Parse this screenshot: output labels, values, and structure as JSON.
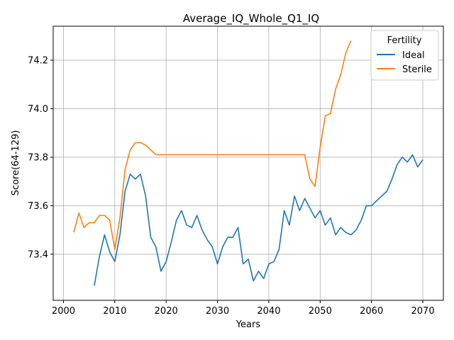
{
  "chart_data": {
    "type": "line",
    "title": "Average_IQ_Whole_Q1_IQ",
    "xlabel": "Years",
    "ylabel": "Score(64-129)",
    "xlim": [
      1998,
      2074
    ],
    "ylim": [
      73.21,
      74.34
    ],
    "xticks": [
      2000,
      2010,
      2020,
      2030,
      2040,
      2050,
      2060,
      2070
    ],
    "yticks": [
      73.4,
      73.6,
      73.8,
      74.0,
      74.2
    ],
    "grid": true,
    "legend": {
      "title": "Fertility",
      "placement": "top-right"
    },
    "series": [
      {
        "name": "Ideal",
        "color": "#1f77b4",
        "x": [
          2006,
          2007,
          2008,
          2009,
          2010,
          2011,
          2012,
          2013,
          2014,
          2015,
          2016,
          2017,
          2018,
          2019,
          2020,
          2021,
          2022,
          2023,
          2024,
          2025,
          2026,
          2027,
          2028,
          2029,
          2030,
          2031,
          2032,
          2033,
          2034,
          2035,
          2036,
          2037,
          2038,
          2039,
          2040,
          2041,
          2042,
          2043,
          2044,
          2045,
          2046,
          2047,
          2048,
          2049,
          2050,
          2051,
          2052,
          2053,
          2054,
          2055,
          2056,
          2057,
          2058,
          2059,
          2060,
          2061,
          2062,
          2063,
          2064,
          2065,
          2066,
          2067,
          2068,
          2069,
          2070
        ],
        "values": [
          73.27,
          73.39,
          73.48,
          73.41,
          73.37,
          73.48,
          73.66,
          73.73,
          73.71,
          73.73,
          73.64,
          73.47,
          73.43,
          73.33,
          73.37,
          73.45,
          73.54,
          73.58,
          73.52,
          73.51,
          73.56,
          73.5,
          73.46,
          73.43,
          73.36,
          73.43,
          73.47,
          73.47,
          73.51,
          73.36,
          73.38,
          73.29,
          73.33,
          73.3,
          73.36,
          73.37,
          73.42,
          73.58,
          73.52,
          73.64,
          73.58,
          73.63,
          73.59,
          73.55,
          73.58,
          73.52,
          73.55,
          73.48,
          73.51,
          73.49,
          73.48,
          73.5,
          73.54,
          73.6,
          73.6,
          73.62,
          73.64,
          73.66,
          73.71,
          73.77,
          73.8,
          73.78,
          73.81,
          73.76,
          73.79
        ]
      },
      {
        "name": "Sterile",
        "color": "#ff7f0e",
        "x": [
          2002,
          2003,
          2004,
          2005,
          2006,
          2007,
          2008,
          2009,
          2010,
          2011,
          2012,
          2013,
          2014,
          2015,
          2016,
          2017,
          2018,
          2019,
          2020,
          2021,
          2022,
          2023,
          2024,
          2025,
          2026,
          2027,
          2028,
          2029,
          2030,
          2031,
          2032,
          2033,
          2034,
          2035,
          2036,
          2037,
          2038,
          2039,
          2040,
          2041,
          2042,
          2043,
          2044,
          2045,
          2046,
          2047,
          2048,
          2049,
          2050,
          2051,
          2052,
          2053,
          2054,
          2055,
          2056
        ],
        "values": [
          73.49,
          73.57,
          73.51,
          73.53,
          73.53,
          73.56,
          73.56,
          73.54,
          73.42,
          73.55,
          73.75,
          73.83,
          73.86,
          73.86,
          73.85,
          73.83,
          73.81,
          73.81,
          73.81,
          73.81,
          73.81,
          73.81,
          73.81,
          73.81,
          73.81,
          73.81,
          73.81,
          73.81,
          73.81,
          73.81,
          73.81,
          73.81,
          73.81,
          73.81,
          73.81,
          73.81,
          73.81,
          73.81,
          73.81,
          73.81,
          73.81,
          73.81,
          73.81,
          73.81,
          73.81,
          73.81,
          73.71,
          73.68,
          73.84,
          73.97,
          73.98,
          74.08,
          74.14,
          74.23,
          74.28
        ]
      }
    ]
  }
}
